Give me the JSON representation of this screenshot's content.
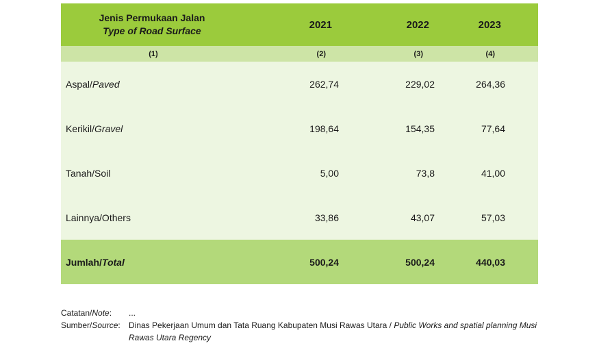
{
  "header": {
    "col0_id": "Jenis Permukaan Jalan",
    "col0_en": "Type of Road Surface",
    "years": [
      "2021",
      "2022",
      "2023"
    ]
  },
  "col_numbers": [
    "(1)",
    "(2)",
    "(3)",
    "(4)"
  ],
  "rows": [
    {
      "label_id": "Aspal/",
      "label_en": "Paved",
      "values": [
        "262,74",
        "229,02",
        "264,36"
      ]
    },
    {
      "label_id": "Kerikil/",
      "label_en": "Gravel",
      "values": [
        "198,64",
        "154,35",
        "77,64"
      ]
    },
    {
      "label_id": "Tanah/Soil",
      "label_en": "",
      "values": [
        "5,00",
        "73,8",
        "41,00"
      ]
    },
    {
      "label_id": "Lainnya/Others",
      "label_en": "",
      "values": [
        "33,86",
        "43,07",
        "57,03"
      ]
    }
  ],
  "total": {
    "label_id": "Jumlah/",
    "label_en": "Total",
    "values": [
      "500,24",
      "500,24",
      "440,03"
    ]
  },
  "notes": {
    "note_label_id": "Catatan/",
    "note_label_en": "Note",
    "note_colon": ":",
    "note_value": "...",
    "source_label_id": "Sumber/",
    "source_label_en": "Source",
    "source_colon": ":",
    "source_value_id": "Dinas Pekerjaan Umum dan Tata Ruang Kabupaten Musi Rawas Utara / ",
    "source_value_en": "Public Works and spatial planning Musi Rawas Utara Regency"
  }
}
